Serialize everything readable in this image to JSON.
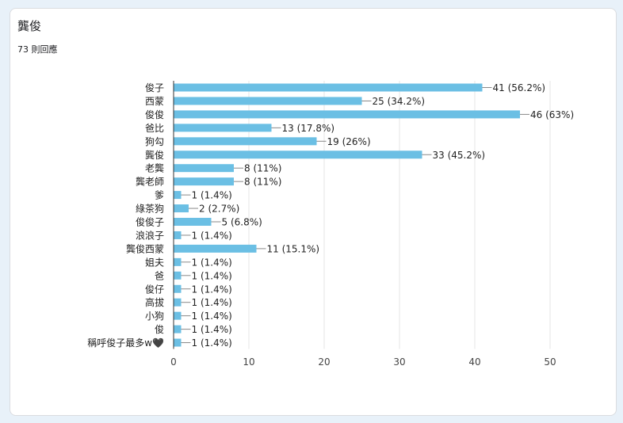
{
  "form": {
    "question_title": "龔俊",
    "response_count": "73 則回應"
  },
  "chart_data": {
    "type": "bar",
    "orientation": "horizontal",
    "title": "龔俊",
    "xlim": [
      0,
      50
    ],
    "x_ticks": [
      0,
      10,
      20,
      30,
      40,
      50
    ],
    "grid": true,
    "bar_color": "#6bbfe4",
    "categories": [
      "俊子",
      "西蒙",
      "俊俊",
      "爸比",
      "狗勾",
      "龔俊",
      "老龔",
      "龔老師",
      "爹",
      "綠茶狗",
      "俊俊子",
      "浪浪子",
      "龔俊西蒙",
      "姐夫",
      "爸",
      "俊仔",
      "高拔",
      "小狗",
      "俊",
      "稱呼俊子最多w🖤"
    ],
    "values": [
      41,
      25,
      46,
      13,
      19,
      33,
      8,
      8,
      1,
      2,
      5,
      1,
      11,
      1,
      1,
      1,
      1,
      1,
      1,
      1
    ],
    "data_labels": [
      "41 (56.2%)",
      "25 (34.2%)",
      "46 (63%)",
      "13 (17.8%)",
      "19 (26%)",
      "33 (45.2%)",
      "8 (11%)",
      "8 (11%)",
      "1 (1.4%)",
      "2 (2.7%)",
      "5 (6.8%)",
      "1 (1.4%)",
      "11 (15.1%)",
      "1 (1.4%)",
      "1 (1.4%)",
      "1 (1.4%)",
      "1 (1.4%)",
      "1 (1.4%)",
      "1 (1.4%)",
      "1 (1.4%)"
    ]
  }
}
